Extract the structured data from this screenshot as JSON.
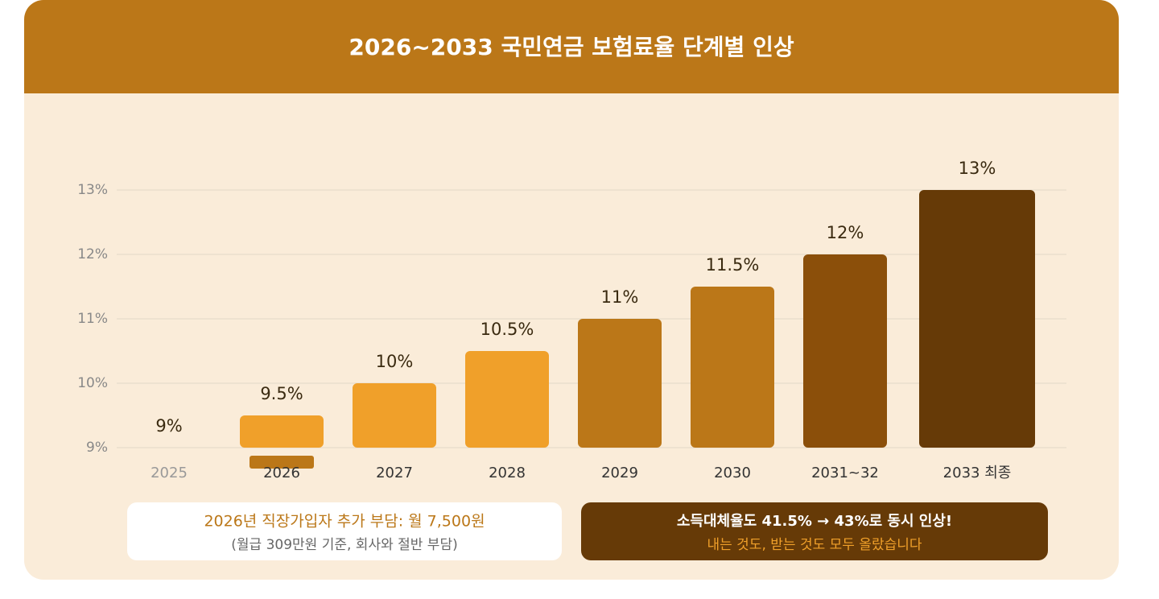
{
  "chart_data": {
    "type": "bar",
    "title": "2026~2033 국민연금 보험료율 단계별 인상",
    "categories": [
      "2025",
      "2026",
      "2027",
      "2028",
      "2029",
      "2030",
      "2031~32",
      "2033 최종"
    ],
    "values": [
      9,
      9.5,
      10,
      10.5,
      11,
      11.5,
      12,
      13
    ],
    "value_labels": [
      "9%",
      "9.5%",
      "10%",
      "10.5%",
      "11%",
      "11.5%",
      "12%",
      "13%"
    ],
    "colors": [
      "#d6d2c8",
      "#f0a02a",
      "#f0a02a",
      "#f0a02a",
      "#bb7718",
      "#bb7718",
      "#8b4f0a",
      "#663a07"
    ],
    "ylim": [
      9,
      13
    ],
    "yticks": [
      {
        "value": 9,
        "label": "9%"
      },
      {
        "value": 10,
        "label": "10%"
      },
      {
        "value": 11,
        "label": "11%"
      },
      {
        "value": 12,
        "label": "12%"
      },
      {
        "value": 13,
        "label": "13%"
      }
    ],
    "grid": true,
    "annotations": [
      {
        "title": "2026년 직장가입자 추가 부담: 월 7,500원",
        "text": "(월급 309만원 기준, 회사와 절반 부담)"
      },
      {
        "title": "소득대체율도 41.5% → 43%로 동시 인상!",
        "text": "내는 것도, 받는 것도 모두 올랐습니다"
      }
    ]
  }
}
